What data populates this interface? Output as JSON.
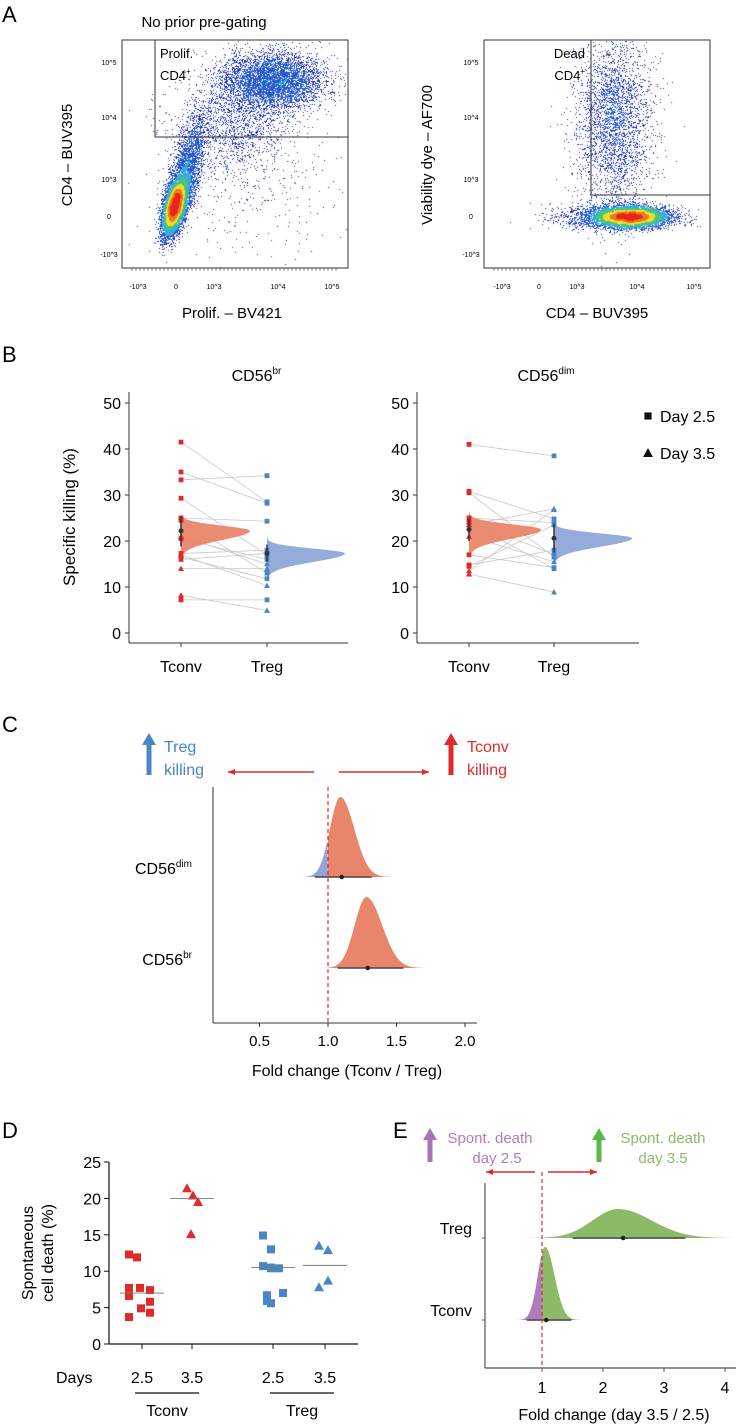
{
  "colors": {
    "tconv": "#e02a2a",
    "treg": "#4a86c5",
    "tconv_posterior": "#e9856a",
    "treg_posterior": "#8fa6d8",
    "day35": "#8dba66",
    "day25": "#b07cc0",
    "day35_arrow": "#5db84c",
    "day25_arrow": "#a874b6",
    "flow_low": "#1c2f9e",
    "flow_high": "#e8261c"
  },
  "panels": {
    "A": {
      "letter": "A",
      "title": "No prior pre-gating",
      "plots": [
        {
          "xlabel": "Prolif. – BV421",
          "ylabel": "CD4 – BUV395",
          "gate_label_1": "Prolif.",
          "gate_label_2": "CD4",
          "gate_sup": "+",
          "xticks": [
            "-10^3",
            "0",
            "10^3",
            "10^4",
            "10^5"
          ],
          "yticks": [
            "10^5",
            "10^4",
            "10^3",
            "0",
            "-10^3"
          ]
        },
        {
          "xlabel": "CD4 – BUV395",
          "ylabel": "Viability dye – AF700",
          "gate_label_1": "Dead",
          "gate_label_2": "CD4",
          "gate_sup": "+",
          "xticks": [
            "-10^3",
            "0",
            "10^3",
            "10^4",
            "10^5"
          ],
          "yticks": [
            "10^5",
            "10^4",
            "10^3",
            "0",
            "-10^3"
          ]
        }
      ]
    },
    "B": {
      "letter": "B"
    },
    "C": {
      "letter": "C",
      "left_annotation_1": "Treg",
      "left_annotation_2": "killing",
      "right_annotation_1": "Tconv",
      "right_annotation_2": "killing"
    },
    "D": {
      "letter": "D",
      "days_label": "Days"
    },
    "E": {
      "letter": "E",
      "left_annotation_1": "Spont. death",
      "left_annotation_2": "day 2.5",
      "right_annotation_1": "Spont. death",
      "right_annotation_2": "day 3.5"
    }
  },
  "chart_data": [
    {
      "panel": "B-left",
      "type": "scatter",
      "title": "CD56",
      "title_sup": "br",
      "ylabel": "Specific killing (%)",
      "ylim": [
        0,
        50
      ],
      "yticks": [
        "0",
        "10",
        "20",
        "30",
        "40",
        "50"
      ],
      "categories": [
        "Tconv",
        "Treg"
      ],
      "legend": [
        {
          "label": "Day 2.5",
          "marker": "square"
        },
        {
          "label": "Day 3.5",
          "marker": "triangle"
        }
      ],
      "pairs": [
        {
          "day": "2.5",
          "tconv": 41.5,
          "treg": 28.5
        },
        {
          "day": "2.5",
          "tconv": 35,
          "treg": 28.2
        },
        {
          "day": "2.5",
          "tconv": 33.3,
          "treg": 34.2
        },
        {
          "day": "2.5",
          "tconv": 29.3,
          "treg": 17
        },
        {
          "day": "2.5",
          "tconv": 25,
          "treg": 24.3
        },
        {
          "day": "2.5",
          "tconv": 24.5,
          "treg": 13
        },
        {
          "day": "2.5",
          "tconv": 20.5,
          "treg": 16
        },
        {
          "day": "2.5",
          "tconv": 17.3,
          "treg": 18
        },
        {
          "day": "2.5",
          "tconv": 16.5,
          "treg": 11.8
        },
        {
          "day": "2.5",
          "tconv": 16,
          "treg": 17.3
        },
        {
          "day": "2.5",
          "tconv": 7.2,
          "treg": 7.2
        },
        {
          "day": "3.5",
          "tconv": 21,
          "treg": 15
        },
        {
          "day": "3.5",
          "tconv": 14,
          "treg": 14
        },
        {
          "day": "3.5",
          "tconv": 8.2,
          "treg": 4.9
        },
        {
          "day": "3.5",
          "tconv": 17,
          "treg": 10.3
        }
      ],
      "posterior": {
        "tconv": {
          "mean": 22.2,
          "sd": 1.4,
          "ci": [
            18.8,
            25.3
          ]
        },
        "treg": {
          "mean": 17.3,
          "sd": 1.3,
          "ci": [
            15.5,
            19.2
          ]
        }
      }
    },
    {
      "panel": "B-right",
      "type": "scatter",
      "title": "CD56",
      "title_sup": "dim",
      "ylim": [
        0,
        50
      ],
      "yticks": [
        "0",
        "10",
        "20",
        "30",
        "40",
        "50"
      ],
      "categories": [
        "Tconv",
        "Treg"
      ],
      "pairs": [
        {
          "day": "2.5",
          "tconv": 41,
          "treg": 38.5
        },
        {
          "day": "2.5",
          "tconv": 30.8,
          "treg": 24.8
        },
        {
          "day": "2.5",
          "tconv": 30.5,
          "treg": 16.5
        },
        {
          "day": "2.5",
          "tconv": 25,
          "treg": 24
        },
        {
          "day": "2.5",
          "tconv": 24.5,
          "treg": 17
        },
        {
          "day": "2.5",
          "tconv": 17,
          "treg": 14.2
        },
        {
          "day": "2.5",
          "tconv": 14.8,
          "treg": 18
        },
        {
          "day": "2.5",
          "tconv": 14.5,
          "treg": 23.5
        },
        {
          "day": "2.5",
          "tconv": 24,
          "treg": 14
        },
        {
          "day": "3.5",
          "tconv": 23.5,
          "treg": 27
        },
        {
          "day": "3.5",
          "tconv": 21,
          "treg": 15.5
        },
        {
          "day": "3.5",
          "tconv": 13.5,
          "treg": 26.8
        },
        {
          "day": "3.5",
          "tconv": 12.8,
          "treg": 8.9
        }
      ],
      "posterior": {
        "tconv": {
          "mean": 22.5,
          "sd": 1.4,
          "ci": [
            20,
            25
          ]
        },
        "treg": {
          "mean": 20.6,
          "sd": 1.3,
          "ci": [
            17.5,
            23.8
          ]
        }
      }
    },
    {
      "panel": "C",
      "type": "area",
      "xlabel": "Fold change (Tconv / Treg)",
      "xlim": [
        0.2,
        2.05
      ],
      "xticks": [
        "0.5",
        "1.0",
        "1.5",
        "2.0"
      ],
      "reference_line": 1.0,
      "rows": [
        {
          "label": "CD56",
          "sup": "dim",
          "peak": 1.09,
          "sd": 0.075,
          "estimate": 1.1,
          "ci": [
            0.905,
            1.32
          ]
        },
        {
          "label": "CD56",
          "sup": "br",
          "peak": 1.28,
          "sd": 0.085,
          "estimate": 1.29,
          "ci": [
            1.07,
            1.55
          ]
        }
      ]
    },
    {
      "panel": "D",
      "type": "scatter",
      "ylabel_1": "Spontaneous",
      "ylabel_2": "cell death (%)",
      "ylim": [
        0,
        25
      ],
      "yticks": [
        "0",
        "5",
        "10",
        "15",
        "20",
        "25"
      ],
      "groups": [
        {
          "group": "Tconv",
          "day": "2.5",
          "marker": "square",
          "values": [
            12.3,
            11.9,
            7.7,
            7.7,
            7.4,
            6.6,
            5.8,
            4.9,
            4.3,
            3.7
          ],
          "median": 7
        },
        {
          "group": "Tconv",
          "day": "3.5",
          "marker": "triangle",
          "values": [
            21.4,
            20.4,
            19.5,
            15.1
          ],
          "median": 20
        },
        {
          "group": "Treg",
          "day": "2.5",
          "marker": "square",
          "values": [
            14.9,
            13,
            10.7,
            10.5,
            10.4,
            10.4,
            7,
            6.7,
            5.9,
            5.6
          ],
          "median": 10.5
        },
        {
          "group": "Treg",
          "day": "3.5",
          "marker": "triangle",
          "values": [
            13.5,
            12.9,
            8.7,
            7.8
          ],
          "median": 10.8
        }
      ],
      "group_labels": [
        "Tconv",
        "Treg"
      ]
    },
    {
      "panel": "E",
      "type": "area",
      "xlabel": "Fold change (day 3.5 / 2.5)",
      "xlim": [
        0,
        4.1
      ],
      "xticks": [
        "1",
        "2",
        "3",
        "4"
      ],
      "reference_line": 1,
      "rows": [
        {
          "label": "Treg",
          "peak": 2.25,
          "sd": 0.42,
          "estimate": 2.33,
          "ci": [
            1.5,
            3.35
          ]
        },
        {
          "label": "Tconv",
          "peak": 1.05,
          "sd": 0.12,
          "estimate": 1.07,
          "ci": [
            0.75,
            1.48
          ]
        }
      ]
    }
  ]
}
